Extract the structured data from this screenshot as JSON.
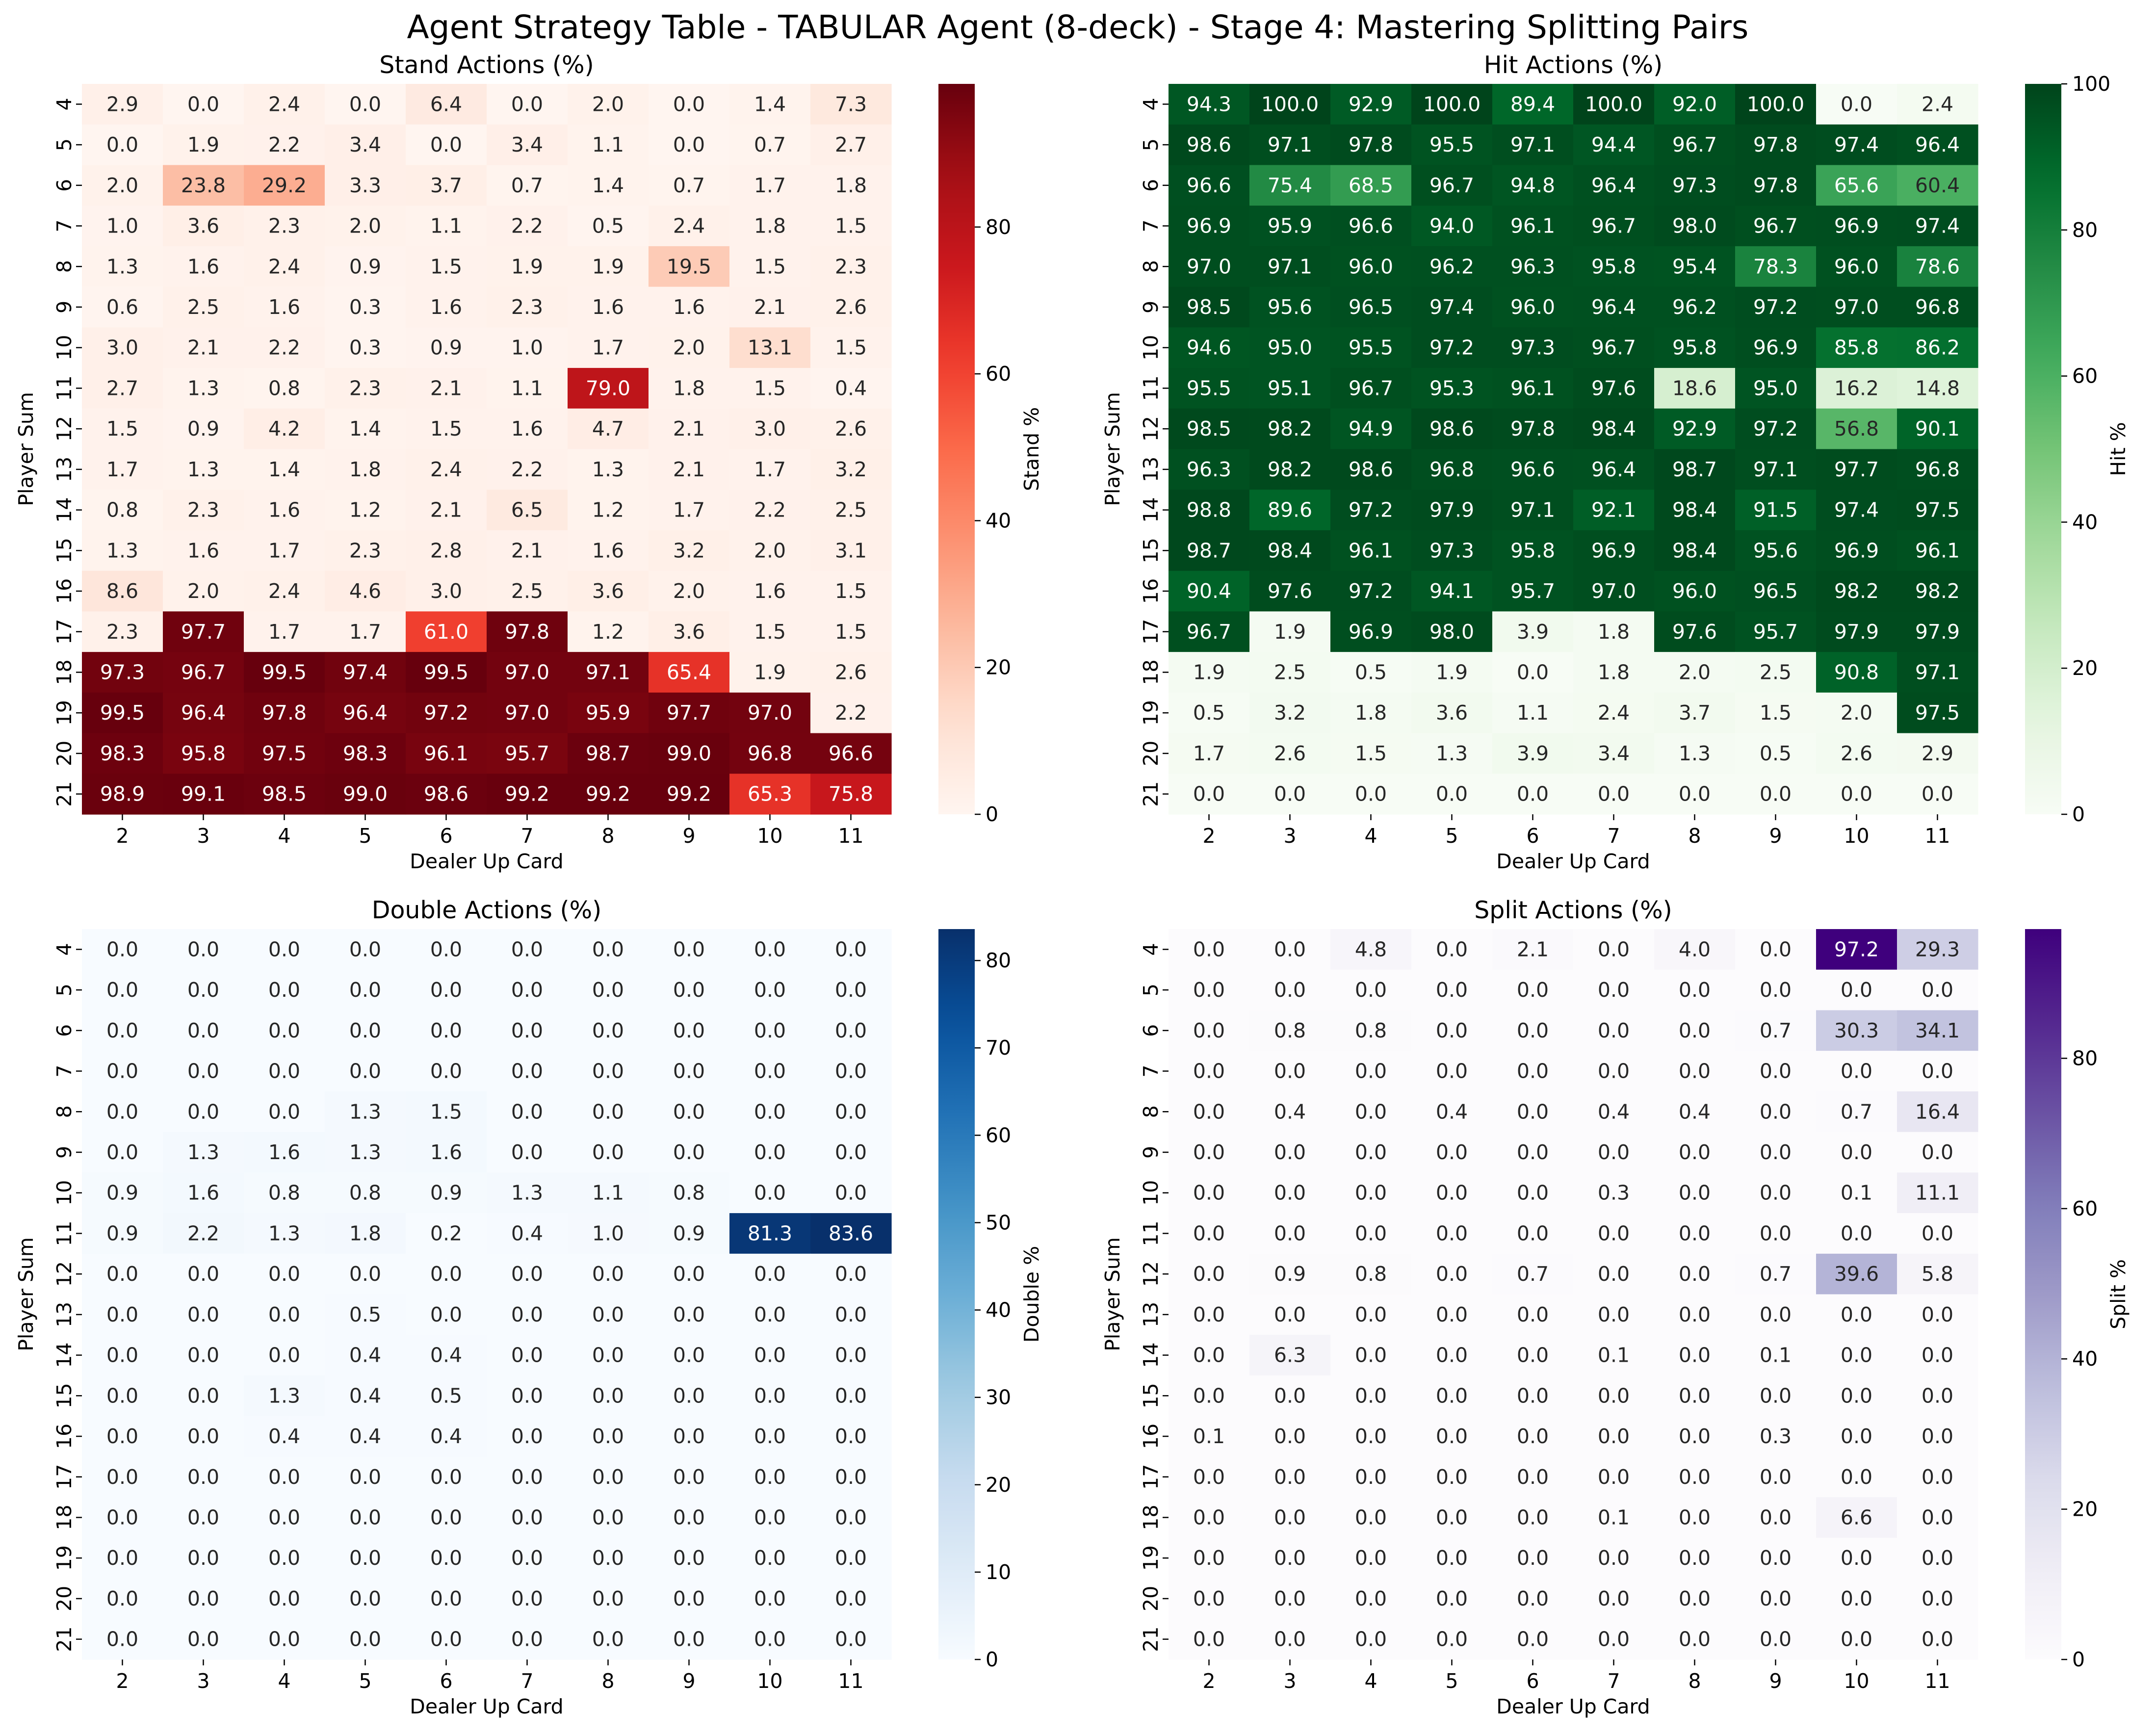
{
  "title": "Agent Strategy Table - TABULAR Agent (8-deck) - Stage 4: Mastering Splitting Pairs",
  "chart_data": [
    {
      "type": "heatmap",
      "title": "Stand Actions (%)",
      "xlabel": "Dealer Up Card",
      "ylabel": "Player Sum",
      "colorbar_label": "Stand %",
      "colormap": "Reds",
      "x_categories": [
        "2",
        "3",
        "4",
        "5",
        "6",
        "7",
        "8",
        "9",
        "10",
        "11"
      ],
      "y_categories": [
        "4",
        "5",
        "6",
        "7",
        "8",
        "9",
        "10",
        "11",
        "12",
        "13",
        "14",
        "15",
        "16",
        "17",
        "18",
        "19",
        "20",
        "21"
      ],
      "vmin": 0,
      "vmax": 99.5,
      "colorbar_ticks": [
        0,
        20,
        40,
        60,
        80
      ],
      "values": [
        [
          2.9,
          0.0,
          2.4,
          0.0,
          6.4,
          0.0,
          2.0,
          0.0,
          1.4,
          7.3
        ],
        [
          0.0,
          1.9,
          2.2,
          3.4,
          0.0,
          3.4,
          1.1,
          0.0,
          0.7,
          2.7
        ],
        [
          2.0,
          23.8,
          29.2,
          3.3,
          3.7,
          0.7,
          1.4,
          0.7,
          1.7,
          1.8
        ],
        [
          1.0,
          3.6,
          2.3,
          2.0,
          1.1,
          2.2,
          0.5,
          2.4,
          1.8,
          1.5
        ],
        [
          1.3,
          1.6,
          2.4,
          0.9,
          1.5,
          1.9,
          1.9,
          19.5,
          1.5,
          2.3
        ],
        [
          0.6,
          2.5,
          1.6,
          0.3,
          1.6,
          2.3,
          1.6,
          1.6,
          2.1,
          2.6
        ],
        [
          3.0,
          2.1,
          2.2,
          0.3,
          0.9,
          1.0,
          1.7,
          2.0,
          13.1,
          1.5
        ],
        [
          2.7,
          1.3,
          0.8,
          2.3,
          2.1,
          1.1,
          79.0,
          1.8,
          1.5,
          0.4
        ],
        [
          1.5,
          0.9,
          4.2,
          1.4,
          1.5,
          1.6,
          4.7,
          2.1,
          3.0,
          2.6
        ],
        [
          1.7,
          1.3,
          1.4,
          1.8,
          2.4,
          2.2,
          1.3,
          2.1,
          1.7,
          3.2
        ],
        [
          0.8,
          2.3,
          1.6,
          1.2,
          2.1,
          6.5,
          1.2,
          1.7,
          2.2,
          2.5
        ],
        [
          1.3,
          1.6,
          1.7,
          2.3,
          2.8,
          2.1,
          1.6,
          3.2,
          2.0,
          3.1
        ],
        [
          8.6,
          2.0,
          2.4,
          4.6,
          3.0,
          2.5,
          3.6,
          2.0,
          1.6,
          1.5
        ],
        [
          2.3,
          97.7,
          1.7,
          1.7,
          61.0,
          97.8,
          1.2,
          3.6,
          1.5,
          1.5
        ],
        [
          97.3,
          96.7,
          99.5,
          97.4,
          99.5,
          97.0,
          97.1,
          65.4,
          1.9,
          2.6
        ],
        [
          99.5,
          96.4,
          97.8,
          96.4,
          97.2,
          97.0,
          95.9,
          97.7,
          97.0,
          2.2
        ],
        [
          98.3,
          95.8,
          97.5,
          98.3,
          96.1,
          95.7,
          98.7,
          99.0,
          96.8,
          96.6
        ],
        [
          98.9,
          99.1,
          98.5,
          99.0,
          98.6,
          99.2,
          99.2,
          99.2,
          65.3,
          75.8
        ]
      ]
    },
    {
      "type": "heatmap",
      "title": "Hit Actions (%)",
      "xlabel": "Dealer Up Card",
      "ylabel": "Player Sum",
      "colorbar_label": "Hit %",
      "colormap": "Greens",
      "x_categories": [
        "2",
        "3",
        "4",
        "5",
        "6",
        "7",
        "8",
        "9",
        "10",
        "11"
      ],
      "y_categories": [
        "4",
        "5",
        "6",
        "7",
        "8",
        "9",
        "10",
        "11",
        "12",
        "13",
        "14",
        "15",
        "16",
        "17",
        "18",
        "19",
        "20",
        "21"
      ],
      "vmin": 0,
      "vmax": 100,
      "colorbar_ticks": [
        0,
        20,
        40,
        60,
        80,
        100
      ],
      "values": [
        [
          94.3,
          100.0,
          92.9,
          100.0,
          89.4,
          100.0,
          92.0,
          100.0,
          0.0,
          2.4
        ],
        [
          98.6,
          97.1,
          97.8,
          95.5,
          97.1,
          94.4,
          96.7,
          97.8,
          97.4,
          96.4
        ],
        [
          96.6,
          75.4,
          68.5,
          96.7,
          94.8,
          96.4,
          97.3,
          97.8,
          65.6,
          60.4
        ],
        [
          96.9,
          95.9,
          96.6,
          94.0,
          96.1,
          96.7,
          98.0,
          96.7,
          96.9,
          97.4
        ],
        [
          97.0,
          97.1,
          96.0,
          96.2,
          96.3,
          95.8,
          95.4,
          78.3,
          96.0,
          78.6
        ],
        [
          98.5,
          95.6,
          96.5,
          97.4,
          96.0,
          96.4,
          96.2,
          97.2,
          97.0,
          96.8
        ],
        [
          94.6,
          95.0,
          95.5,
          97.2,
          97.3,
          96.7,
          95.8,
          96.9,
          85.8,
          86.2
        ],
        [
          95.5,
          95.1,
          96.7,
          95.3,
          96.1,
          97.6,
          18.6,
          95.0,
          16.2,
          14.8
        ],
        [
          98.5,
          98.2,
          94.9,
          98.6,
          97.8,
          98.4,
          92.9,
          97.2,
          56.8,
          90.1
        ],
        [
          96.3,
          98.2,
          98.6,
          96.8,
          96.6,
          96.4,
          98.7,
          97.1,
          97.7,
          96.8
        ],
        [
          98.8,
          89.6,
          97.2,
          97.9,
          97.1,
          92.1,
          98.4,
          91.5,
          97.4,
          97.5
        ],
        [
          98.7,
          98.4,
          96.1,
          97.3,
          95.8,
          96.9,
          98.4,
          95.6,
          96.9,
          96.1
        ],
        [
          90.4,
          97.6,
          97.2,
          94.1,
          95.7,
          97.0,
          96.0,
          96.5,
          98.2,
          98.2
        ],
        [
          96.7,
          1.9,
          96.9,
          98.0,
          3.9,
          1.8,
          97.6,
          95.7,
          97.9,
          97.9
        ],
        [
          1.9,
          2.5,
          0.5,
          1.9,
          0.0,
          1.8,
          2.0,
          2.5,
          90.8,
          97.1
        ],
        [
          0.5,
          3.2,
          1.8,
          3.6,
          1.1,
          2.4,
          3.7,
          1.5,
          2.0,
          97.5
        ],
        [
          1.7,
          2.6,
          1.5,
          1.3,
          3.9,
          3.4,
          1.3,
          0.5,
          2.6,
          2.9
        ],
        [
          0.0,
          0.0,
          0.0,
          0.0,
          0.0,
          0.0,
          0.0,
          0.0,
          0.0,
          0.0
        ]
      ]
    },
    {
      "type": "heatmap",
      "title": "Double Actions (%)",
      "xlabel": "Dealer Up Card",
      "ylabel": "Player Sum",
      "colorbar_label": "Double %",
      "colormap": "Blues",
      "x_categories": [
        "2",
        "3",
        "4",
        "5",
        "6",
        "7",
        "8",
        "9",
        "10",
        "11"
      ],
      "y_categories": [
        "4",
        "5",
        "6",
        "7",
        "8",
        "9",
        "10",
        "11",
        "12",
        "13",
        "14",
        "15",
        "16",
        "17",
        "18",
        "19",
        "20",
        "21"
      ],
      "vmin": 0,
      "vmax": 83.6,
      "colorbar_ticks": [
        0,
        10,
        20,
        30,
        40,
        50,
        60,
        70,
        80
      ],
      "values": [
        [
          0.0,
          0.0,
          0.0,
          0.0,
          0.0,
          0.0,
          0.0,
          0.0,
          0.0,
          0.0
        ],
        [
          0.0,
          0.0,
          0.0,
          0.0,
          0.0,
          0.0,
          0.0,
          0.0,
          0.0,
          0.0
        ],
        [
          0.0,
          0.0,
          0.0,
          0.0,
          0.0,
          0.0,
          0.0,
          0.0,
          0.0,
          0.0
        ],
        [
          0.0,
          0.0,
          0.0,
          0.0,
          0.0,
          0.0,
          0.0,
          0.0,
          0.0,
          0.0
        ],
        [
          0.0,
          0.0,
          0.0,
          1.3,
          1.5,
          0.0,
          0.0,
          0.0,
          0.0,
          0.0
        ],
        [
          0.0,
          1.3,
          1.6,
          1.3,
          1.6,
          0.0,
          0.0,
          0.0,
          0.0,
          0.0
        ],
        [
          0.9,
          1.6,
          0.8,
          0.8,
          0.9,
          1.3,
          1.1,
          0.8,
          0.0,
          0.0
        ],
        [
          0.9,
          2.2,
          1.3,
          1.8,
          0.2,
          0.4,
          1.0,
          0.9,
          81.3,
          83.6
        ],
        [
          0.0,
          0.0,
          0.0,
          0.0,
          0.0,
          0.0,
          0.0,
          0.0,
          0.0,
          0.0
        ],
        [
          0.0,
          0.0,
          0.0,
          0.5,
          0.0,
          0.0,
          0.0,
          0.0,
          0.0,
          0.0
        ],
        [
          0.0,
          0.0,
          0.0,
          0.4,
          0.4,
          0.0,
          0.0,
          0.0,
          0.0,
          0.0
        ],
        [
          0.0,
          0.0,
          1.3,
          0.4,
          0.5,
          0.0,
          0.0,
          0.0,
          0.0,
          0.0
        ],
        [
          0.0,
          0.0,
          0.4,
          0.4,
          0.4,
          0.0,
          0.0,
          0.0,
          0.0,
          0.0
        ],
        [
          0.0,
          0.0,
          0.0,
          0.0,
          0.0,
          0.0,
          0.0,
          0.0,
          0.0,
          0.0
        ],
        [
          0.0,
          0.0,
          0.0,
          0.0,
          0.0,
          0.0,
          0.0,
          0.0,
          0.0,
          0.0
        ],
        [
          0.0,
          0.0,
          0.0,
          0.0,
          0.0,
          0.0,
          0.0,
          0.0,
          0.0,
          0.0
        ],
        [
          0.0,
          0.0,
          0.0,
          0.0,
          0.0,
          0.0,
          0.0,
          0.0,
          0.0,
          0.0
        ],
        [
          0.0,
          0.0,
          0.0,
          0.0,
          0.0,
          0.0,
          0.0,
          0.0,
          0.0,
          0.0
        ]
      ]
    },
    {
      "type": "heatmap",
      "title": "Split Actions (%)",
      "xlabel": "Dealer Up Card",
      "ylabel": "Player Sum",
      "colorbar_label": "Split %",
      "colormap": "Purples",
      "x_categories": [
        "2",
        "3",
        "4",
        "5",
        "6",
        "7",
        "8",
        "9",
        "10",
        "11"
      ],
      "y_categories": [
        "4",
        "5",
        "6",
        "7",
        "8",
        "9",
        "10",
        "11",
        "12",
        "13",
        "14",
        "15",
        "16",
        "17",
        "18",
        "19",
        "20",
        "21"
      ],
      "vmin": 0,
      "vmax": 97.2,
      "colorbar_ticks": [
        0,
        20,
        40,
        60,
        80
      ],
      "values": [
        [
          0.0,
          0.0,
          4.8,
          0.0,
          2.1,
          0.0,
          4.0,
          0.0,
          97.2,
          29.3
        ],
        [
          0.0,
          0.0,
          0.0,
          0.0,
          0.0,
          0.0,
          0.0,
          0.0,
          0.0,
          0.0
        ],
        [
          0.0,
          0.8,
          0.8,
          0.0,
          0.0,
          0.0,
          0.0,
          0.7,
          30.3,
          34.1
        ],
        [
          0.0,
          0.0,
          0.0,
          0.0,
          0.0,
          0.0,
          0.0,
          0.0,
          0.0,
          0.0
        ],
        [
          0.0,
          0.4,
          0.0,
          0.4,
          0.0,
          0.4,
          0.4,
          0.0,
          0.7,
          16.4
        ],
        [
          0.0,
          0.0,
          0.0,
          0.0,
          0.0,
          0.0,
          0.0,
          0.0,
          0.0,
          0.0
        ],
        [
          0.0,
          0.0,
          0.0,
          0.0,
          0.0,
          0.3,
          0.0,
          0.0,
          0.1,
          11.1
        ],
        [
          0.0,
          0.0,
          0.0,
          0.0,
          0.0,
          0.0,
          0.0,
          0.0,
          0.0,
          0.0
        ],
        [
          0.0,
          0.9,
          0.8,
          0.0,
          0.7,
          0.0,
          0.0,
          0.7,
          39.6,
          5.8
        ],
        [
          0.0,
          0.0,
          0.0,
          0.0,
          0.0,
          0.0,
          0.0,
          0.0,
          0.0,
          0.0
        ],
        [
          0.0,
          6.3,
          0.0,
          0.0,
          0.0,
          0.1,
          0.0,
          0.1,
          0.0,
          0.0
        ],
        [
          0.0,
          0.0,
          0.0,
          0.0,
          0.0,
          0.0,
          0.0,
          0.0,
          0.0,
          0.0
        ],
        [
          0.1,
          0.0,
          0.0,
          0.0,
          0.0,
          0.0,
          0.0,
          0.3,
          0.0,
          0.0
        ],
        [
          0.0,
          0.0,
          0.0,
          0.0,
          0.0,
          0.0,
          0.0,
          0.0,
          0.0,
          0.0
        ],
        [
          0.0,
          0.0,
          0.0,
          0.0,
          0.0,
          0.1,
          0.0,
          0.0,
          6.6,
          0.0
        ],
        [
          0.0,
          0.0,
          0.0,
          0.0,
          0.0,
          0.0,
          0.0,
          0.0,
          0.0,
          0.0
        ],
        [
          0.0,
          0.0,
          0.0,
          0.0,
          0.0,
          0.0,
          0.0,
          0.0,
          0.0,
          0.0
        ],
        [
          0.0,
          0.0,
          0.0,
          0.0,
          0.0,
          0.0,
          0.0,
          0.0,
          0.0,
          0.0
        ]
      ]
    }
  ]
}
